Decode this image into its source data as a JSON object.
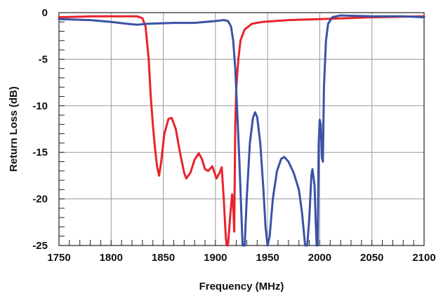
{
  "chart_data": {
    "type": "line",
    "title": "",
    "xlabel": "Frequency (MHz)",
    "ylabel": "Return Loss (dB)",
    "xlim": [
      1750,
      2100
    ],
    "ylim": [
      -25,
      0
    ],
    "x_ticks": [
      1750,
      1800,
      1850,
      1900,
      1950,
      2000,
      2050,
      2100
    ],
    "x_tick_labels": [
      "1750",
      "1800",
      "1850",
      "1900",
      "1950",
      "2000",
      "2050",
      "2100"
    ],
    "y_ticks": [
      0,
      -5,
      -10,
      -15,
      -20,
      -25
    ],
    "y_tick_labels": [
      "0",
      "-5",
      "-10",
      "-15",
      "-20",
      "-25"
    ],
    "grid": true,
    "legend": "none",
    "series": [
      {
        "color": "#e8232a",
        "points": [
          [
            1750,
            -0.5
          ],
          [
            1780,
            -0.4
          ],
          [
            1810,
            -0.4
          ],
          [
            1825,
            -0.4
          ],
          [
            1830,
            -0.6
          ],
          [
            1833,
            -1.5
          ],
          [
            1836,
            -5
          ],
          [
            1838,
            -9
          ],
          [
            1840,
            -12
          ],
          [
            1842,
            -14.5
          ],
          [
            1844,
            -16.5
          ],
          [
            1846,
            -17.5
          ],
          [
            1848,
            -16
          ],
          [
            1851,
            -13
          ],
          [
            1855,
            -11.4
          ],
          [
            1858,
            -11.3
          ],
          [
            1862,
            -12.5
          ],
          [
            1866,
            -15
          ],
          [
            1870,
            -17.2
          ],
          [
            1872,
            -17.8
          ],
          [
            1876,
            -17.2
          ],
          [
            1880,
            -15.8
          ],
          [
            1884,
            -15.1
          ],
          [
            1887,
            -15.7
          ],
          [
            1890,
            -16.8
          ],
          [
            1893,
            -17
          ],
          [
            1897,
            -16.5
          ],
          [
            1901,
            -17.8
          ],
          [
            1904,
            -17.2
          ],
          [
            1906,
            -16.6
          ],
          [
            1908,
            -20
          ],
          [
            1910,
            -24.2
          ],
          [
            1911,
            -25
          ],
          [
            1912,
            -25
          ],
          [
            1914,
            -22
          ],
          [
            1916,
            -19.5
          ],
          [
            1917,
            -20.5
          ],
          [
            1918,
            -23.5
          ],
          [
            1919,
            -12
          ],
          [
            1920,
            -8
          ],
          [
            1922,
            -5
          ],
          [
            1924,
            -3
          ],
          [
            1928,
            -1.8
          ],
          [
            1935,
            -1.2
          ],
          [
            1945,
            -1
          ],
          [
            1970,
            -0.8
          ],
          [
            2000,
            -0.7
          ],
          [
            2050,
            -0.5
          ],
          [
            2100,
            -0.4
          ]
        ]
      },
      {
        "color": "#3a52a6",
        "points": [
          [
            1750,
            -0.7
          ],
          [
            1780,
            -0.8
          ],
          [
            1800,
            -1.0
          ],
          [
            1815,
            -1.2
          ],
          [
            1825,
            -1.3
          ],
          [
            1835,
            -1.2
          ],
          [
            1860,
            -1.1
          ],
          [
            1880,
            -1.1
          ],
          [
            1900,
            -0.9
          ],
          [
            1908,
            -0.8
          ],
          [
            1912,
            -0.9
          ],
          [
            1915,
            -1.5
          ],
          [
            1917,
            -3
          ],
          [
            1919,
            -6
          ],
          [
            1921,
            -11
          ],
          [
            1923,
            -16
          ],
          [
            1925,
            -22
          ],
          [
            1926,
            -25
          ],
          [
            1928,
            -25
          ],
          [
            1930,
            -20
          ],
          [
            1933,
            -14
          ],
          [
            1936,
            -11.3
          ],
          [
            1938,
            -10.7
          ],
          [
            1940,
            -11.2
          ],
          [
            1943,
            -14
          ],
          [
            1946,
            -19
          ],
          [
            1948,
            -23
          ],
          [
            1950,
            -25
          ],
          [
            1952,
            -24
          ],
          [
            1955,
            -20
          ],
          [
            1959,
            -17
          ],
          [
            1963,
            -15.7
          ],
          [
            1966,
            -15.5
          ],
          [
            1970,
            -16
          ],
          [
            1975,
            -17.2
          ],
          [
            1980,
            -19
          ],
          [
            1983,
            -21.5
          ],
          [
            1986,
            -25
          ],
          [
            1988,
            -25
          ],
          [
            1990,
            -22
          ],
          [
            1992,
            -17.5
          ],
          [
            1993,
            -16.8
          ],
          [
            1995,
            -18.5
          ],
          [
            1996,
            -22
          ],
          [
            1997,
            -25
          ],
          [
            1998,
            -25
          ],
          [
            1999,
            -14
          ],
          [
            2000,
            -11.5
          ],
          [
            2001,
            -12
          ],
          [
            2002,
            -15.5
          ],
          [
            2003,
            -16
          ],
          [
            2004,
            -8
          ],
          [
            2006,
            -3
          ],
          [
            2008,
            -1.2
          ],
          [
            2012,
            -0.5
          ],
          [
            2020,
            -0.3
          ],
          [
            2050,
            -0.4
          ],
          [
            2080,
            -0.4
          ],
          [
            2100,
            -0.5
          ]
        ]
      }
    ]
  }
}
